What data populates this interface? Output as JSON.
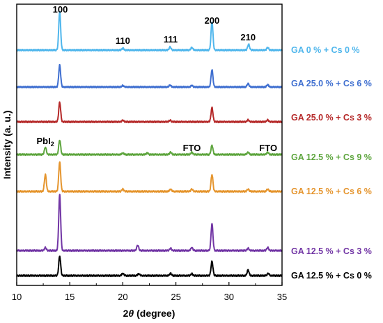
{
  "chart_data": {
    "type": "line",
    "xlabel": "2θ (degree)",
    "xlabel_prefix": "2",
    "xlabel_theta": "θ",
    "xlabel_suffix": " (degree)",
    "ylabel": "Intensity (a. u.)",
    "xlim": [
      10,
      35
    ],
    "x_ticks": [
      10,
      15,
      20,
      25,
      30,
      35
    ],
    "y_ticks_shown": false,
    "grid": false,
    "annotations": [
      {
        "text": "100",
        "x": 14.1
      },
      {
        "text": "110",
        "x": 20.0
      },
      {
        "text": "111",
        "x": 24.5
      },
      {
        "text": "200",
        "x": 28.4
      },
      {
        "text": "210",
        "x": 31.8
      },
      {
        "text": "PbI",
        "sub": "2",
        "x": 12.7
      },
      {
        "text": "FTO",
        "x": 26.5
      },
      {
        "text": "FTO",
        "x": 33.7
      }
    ],
    "peak_width_deg": 0.09,
    "series": [
      {
        "name": "GA 0 % + Cs 0 %",
        "color": "#4fb6ec",
        "peaks": [
          [
            14.05,
            10.0
          ],
          [
            20.0,
            0.5
          ],
          [
            24.45,
            0.8
          ],
          [
            26.5,
            0.7
          ],
          [
            28.4,
            7.4
          ],
          [
            31.85,
            1.5
          ],
          [
            33.65,
            0.7
          ]
        ]
      },
      {
        "name": "GA 25.0 % + Cs 6 %",
        "color": "#3f6fd0",
        "peaks": [
          [
            14.05,
            5.7
          ],
          [
            20.0,
            0.4
          ],
          [
            24.45,
            0.5
          ],
          [
            26.5,
            0.4
          ],
          [
            28.4,
            4.5
          ],
          [
            31.8,
            0.9
          ],
          [
            33.65,
            0.6
          ]
        ]
      },
      {
        "name": "GA 25.0 % + Cs 3 %",
        "color": "#b52828",
        "peaks": [
          [
            14.05,
            5.1
          ],
          [
            20.0,
            0.4
          ],
          [
            24.45,
            0.4
          ],
          [
            28.4,
            3.7
          ],
          [
            31.8,
            0.5
          ],
          [
            33.65,
            0.5
          ]
        ]
      },
      {
        "name": "GA 12.5 % + Cs 9 %",
        "color": "#5ea53e",
        "peaks": [
          [
            12.7,
            1.9
          ],
          [
            14.05,
            3.8
          ],
          [
            20.0,
            0.4
          ],
          [
            22.3,
            0.4
          ],
          [
            24.5,
            0.6
          ],
          [
            26.5,
            0.6
          ],
          [
            28.4,
            2.4
          ],
          [
            31.8,
            0.6
          ],
          [
            33.65,
            0.6
          ]
        ]
      },
      {
        "name": "GA 12.5 % + Cs 6 %",
        "color": "#e5952e",
        "peaks": [
          [
            12.7,
            4.4
          ],
          [
            14.05,
            7.7
          ],
          [
            20.0,
            0.6
          ],
          [
            24.5,
            0.6
          ],
          [
            26.5,
            0.6
          ],
          [
            28.4,
            4.4
          ],
          [
            31.8,
            0.6
          ],
          [
            33.65,
            0.6
          ]
        ]
      },
      {
        "name": "GA 12.5 % + Cs 3 %",
        "color": "#7236a5",
        "peaks": [
          [
            12.7,
            0.8
          ],
          [
            14.05,
            14.6
          ],
          [
            21.4,
            1.4
          ],
          [
            24.5,
            0.6
          ],
          [
            26.5,
            0.8
          ],
          [
            28.4,
            7.0
          ],
          [
            31.8,
            0.6
          ],
          [
            33.65,
            0.8
          ]
        ]
      },
      {
        "name": "GA 12.5 % + Cs 0 %",
        "color": "#000000",
        "peaks": [
          [
            14.05,
            5.1
          ],
          [
            20.0,
            0.6
          ],
          [
            21.5,
            0.5
          ],
          [
            24.5,
            0.6
          ],
          [
            26.5,
            0.5
          ],
          [
            28.4,
            3.7
          ],
          [
            31.8,
            1.5
          ],
          [
            33.7,
            0.6
          ]
        ]
      }
    ]
  }
}
